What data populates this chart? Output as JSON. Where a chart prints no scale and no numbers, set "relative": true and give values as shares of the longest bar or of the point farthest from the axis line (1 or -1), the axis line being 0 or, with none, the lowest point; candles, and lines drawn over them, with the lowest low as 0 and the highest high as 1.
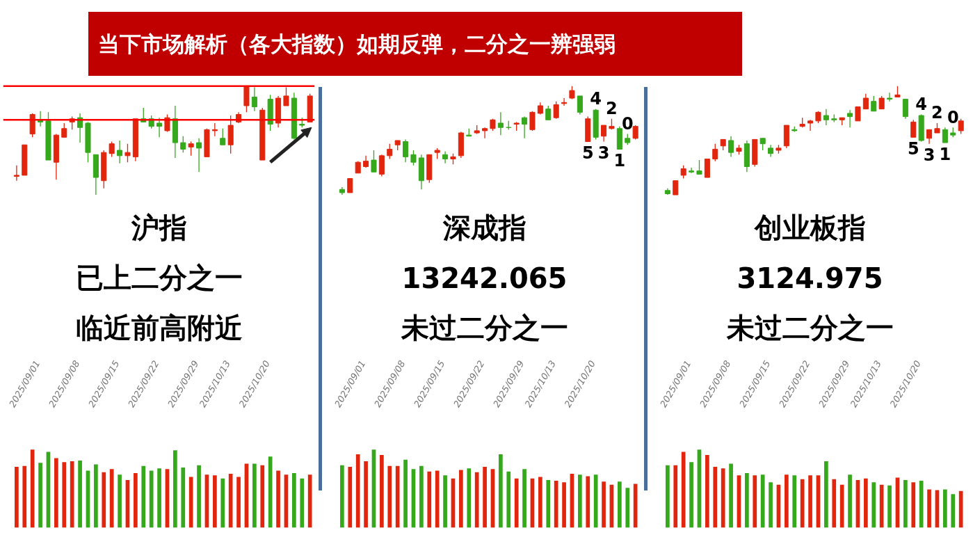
{
  "chart_data": [
    {
      "type": "candlestick",
      "title": "当下市场解析（各大指数）如期反弹，二分之一辨强弱",
      "relative": true,
      "categories": [
        null,
        "2025/09/01",
        null,
        null,
        null,
        null,
        "2025/09/08",
        null,
        null,
        null,
        null,
        "2025/09/15",
        null,
        null,
        null,
        null,
        "2025/09/22",
        null,
        null,
        null,
        null,
        "2025/09/29",
        null,
        null,
        null,
        "2025/10/13",
        null,
        null,
        null,
        null,
        "2025/10/20",
        null,
        null,
        null,
        null,
        null,
        null,
        null
      ],
      "ohlc": [
        [
          0.17,
          0.27,
          0.13,
          0.18
        ],
        [
          0.18,
          0.46,
          0.18,
          0.46
        ],
        [
          0.56,
          0.75,
          0.53,
          0.74
        ],
        [
          0.69,
          0.77,
          0.63,
          0.67
        ],
        [
          0.68,
          0.76,
          0.32,
          0.32
        ],
        [
          0.3,
          0.56,
          0.14,
          0.55
        ],
        [
          0.53,
          0.66,
          0.53,
          0.61
        ],
        [
          0.67,
          0.72,
          0.6,
          0.7
        ],
        [
          0.71,
          0.75,
          0.48,
          0.62
        ],
        [
          0.66,
          0.67,
          0.3,
          0.39
        ],
        [
          0.37,
          0.37,
          0,
          0.16
        ],
        [
          0.13,
          0.41,
          0.06,
          0.39
        ],
        [
          0.38,
          0.49,
          0.35,
          0.47
        ],
        [
          0.41,
          0.5,
          0.29,
          0.36
        ],
        [
          0.36,
          0.47,
          0.3,
          0.39
        ],
        [
          0.35,
          0.7,
          0.31,
          0.7
        ],
        [
          0.7,
          0.8,
          0.67,
          0.67
        ],
        [
          0.7,
          0.73,
          0.61,
          0.63
        ],
        [
          0.66,
          0.71,
          0.53,
          0.63
        ],
        [
          0.59,
          0.74,
          0.58,
          0.71
        ],
        [
          0.7,
          0.82,
          0.34,
          0.48
        ],
        [
          0.48,
          0.54,
          0.39,
          0.42
        ],
        [
          0.44,
          0.49,
          0.36,
          0.47
        ],
        [
          0.48,
          0.52,
          0.21,
          0.43
        ],
        [
          0.35,
          0.61,
          0.35,
          0.6
        ],
        [
          0.59,
          0.66,
          0.54,
          0.6
        ],
        [
          0.52,
          0.61,
          0.46,
          0.46
        ],
        [
          0.46,
          0.73,
          0.38,
          0.64
        ],
        [
          0.67,
          0.76,
          0.66,
          0.74
        ],
        [
          0.82,
          1,
          0.76,
          1
        ],
        [
          0.9,
          0.99,
          0.77,
          0.81
        ],
        [
          0.32,
          0.8,
          0.32,
          0.78
        ],
        [
          0.88,
          0.92,
          0.59,
          0.65
        ],
        [
          0.66,
          0.91,
          0.62,
          0.89
        ],
        [
          0.82,
          0.99,
          0.82,
          0.91
        ],
        [
          0.89,
          0.94,
          0.51,
          0.52
        ],
        [
          0.65,
          0.71,
          0.62,
          0.64
        ],
        [
          0.67,
          0.93,
          0.67,
          0.91
        ]
      ],
      "colors": [
        "#e2260e",
        "#e2260e",
        "#e2260e",
        "#35a81c",
        "#35a81c",
        "#e2260e",
        "#e2260e",
        "#e2260e",
        "#35a81c",
        "#35a81c",
        "#35a81c",
        "#e2260e",
        "#e2260e",
        "#35a81c",
        "#e2260e",
        "#e2260e",
        "#35a81c",
        "#35a81c",
        "#35a81c",
        "#e2260e",
        "#35a81c",
        "#35a81c",
        "#e2260e",
        "#35a81c",
        "#e2260e",
        "#e2260e",
        "#35a81c",
        "#e2260e",
        "#e2260e",
        "#e2260e",
        "#35a81c",
        "#e2260e",
        "#35a81c",
        "#e2260e",
        "#e2260e",
        "#35a81c",
        "#35a81c",
        "#e2260e"
      ],
      "ref_lines": [
        {
          "axis": "y",
          "value": 1,
          "color": "#ff0000"
        },
        {
          "axis": "y",
          "value": 0.69,
          "color": "#ff0000"
        }
      ],
      "annotations": [
        "沪指",
        "已上二分之一",
        "临近前高附近"
      ]
    },
    {
      "type": "bar",
      "relative": true,
      "categories": [
        null,
        null,
        null,
        null,
        null,
        null,
        null,
        null,
        null,
        null,
        null,
        null,
        null,
        null,
        null,
        null,
        null,
        null,
        null,
        null,
        null,
        null,
        null,
        null,
        null,
        null,
        null,
        null,
        null,
        null,
        null,
        null,
        null,
        null,
        null,
        null,
        null,
        null
      ],
      "values": [
        0.78,
        0.79,
        1,
        0.83,
        0.97,
        0.89,
        0.84,
        0.85,
        0.86,
        0.73,
        0.81,
        0.71,
        0.75,
        0.68,
        0.61,
        0.7,
        0.79,
        0.73,
        0.76,
        0.75,
        0.99,
        0.77,
        0.65,
        0.8,
        0.68,
        0.67,
        0.63,
        0.69,
        0.65,
        0.82,
        0.82,
        0.8,
        0.91,
        0.73,
        0.68,
        0.7,
        0.63,
        0.68
      ],
      "colors": [
        "#e2260e",
        "#e2260e",
        "#e2260e",
        "#35a81c",
        "#35a81c",
        "#e2260e",
        "#e2260e",
        "#e2260e",
        "#35a81c",
        "#35a81c",
        "#35a81c",
        "#e2260e",
        "#e2260e",
        "#35a81c",
        "#e2260e",
        "#e2260e",
        "#35a81c",
        "#35a81c",
        "#35a81c",
        "#e2260e",
        "#35a81c",
        "#35a81c",
        "#e2260e",
        "#35a81c",
        "#e2260e",
        "#e2260e",
        "#35a81c",
        "#e2260e",
        "#e2260e",
        "#e2260e",
        "#35a81c",
        "#e2260e",
        "#35a81c",
        "#e2260e",
        "#e2260e",
        "#35a81c",
        "#35a81c",
        "#e2260e"
      ]
    },
    {
      "type": "candlestick",
      "relative": true,
      "categories": [
        null,
        "2025/09/01",
        null,
        null,
        null,
        null,
        "2025/09/08",
        null,
        null,
        null,
        null,
        "2025/09/15",
        null,
        null,
        null,
        null,
        "2025/09/22",
        null,
        null,
        null,
        null,
        "2025/09/29",
        null,
        null,
        null,
        "2025/10/13",
        null,
        null,
        null,
        null,
        "2025/10/20",
        null,
        null,
        null,
        null,
        null,
        null,
        null
      ],
      "ohlc": [
        [
          0.05,
          0.07,
          0,
          0.02
        ],
        [
          0.02,
          0.15,
          0.02,
          0.15
        ],
        [
          0.2,
          0.31,
          0.2,
          0.3
        ],
        [
          0.26,
          0.36,
          0.25,
          0.31
        ],
        [
          0.32,
          0.41,
          0.21,
          0.21
        ],
        [
          0.19,
          0.37,
          0.17,
          0.36
        ],
        [
          0.36,
          0.47,
          0.33,
          0.42
        ],
        [
          0.46,
          0.5,
          0.41,
          0.5
        ],
        [
          0.49,
          0.51,
          0.3,
          0.35
        ],
        [
          0.37,
          0.41,
          0.27,
          0.3
        ],
        [
          0.34,
          0.37,
          0.05,
          0.13
        ],
        [
          0.14,
          0.37,
          0.11,
          0.37
        ],
        [
          0.39,
          0.43,
          0.33,
          0.41
        ],
        [
          0.37,
          0.4,
          0.29,
          0.33
        ],
        [
          0.33,
          0.38,
          0.28,
          0.35
        ],
        [
          0.36,
          0.58,
          0.34,
          0.57
        ],
        [
          0.55,
          0.61,
          0.54,
          0.54
        ],
        [
          0.57,
          0.64,
          0.56,
          0.59
        ],
        [
          0.59,
          0.62,
          0.52,
          0.61
        ],
        [
          0.61,
          0.7,
          0.59,
          0.69
        ],
        [
          0.66,
          0.76,
          0.55,
          0.62
        ],
        [
          0.62,
          0.68,
          0.6,
          0.62
        ],
        [
          0.65,
          0.67,
          0.59,
          0.66
        ],
        [
          0.71,
          0.72,
          0.52,
          0.65
        ],
        [
          0.6,
          0.77,
          0.59,
          0.76
        ],
        [
          0.75,
          0.85,
          0.74,
          0.82
        ],
        [
          0.79,
          0.82,
          0.69,
          0.69
        ],
        [
          0.71,
          0.86,
          0.7,
          0.83
        ],
        [
          0.84,
          0.89,
          0.82,
          0.85
        ],
        [
          0.89,
          1,
          0.88,
          0.96
        ],
        [
          0.91,
          0.91,
          0.74,
          0.76
        ],
        [
          0.49,
          0.72,
          0.49,
          0.7
        ],
        [
          0.78,
          0.79,
          0.51,
          0.53
        ],
        [
          0.54,
          0.64,
          0.49,
          0.64
        ],
        [
          0.61,
          0.7,
          0.6,
          0.63
        ],
        [
          0.61,
          0.63,
          0.42,
          0.42
        ],
        [
          0.52,
          0.56,
          0.46,
          0.48
        ],
        [
          0.52,
          0.64,
          0.51,
          0.63
        ]
      ],
      "colors": [
        "#35a81c",
        "#e2260e",
        "#e2260e",
        "#e2260e",
        "#35a81c",
        "#e2260e",
        "#e2260e",
        "#e2260e",
        "#35a81c",
        "#35a81c",
        "#35a81c",
        "#e2260e",
        "#e2260e",
        "#35a81c",
        "#e2260e",
        "#e2260e",
        "#35a81c",
        "#e2260e",
        "#e2260e",
        "#e2260e",
        "#35a81c",
        "#35a81c",
        "#e2260e",
        "#35a81c",
        "#e2260e",
        "#e2260e",
        "#35a81c",
        "#e2260e",
        "#e2260e",
        "#e2260e",
        "#35a81c",
        "#e2260e",
        "#35a81c",
        "#e2260e",
        "#e2260e",
        "#35a81c",
        "#35a81c",
        "#e2260e"
      ],
      "value_labels": [
        null,
        null,
        null,
        null,
        null,
        null,
        null,
        null,
        null,
        null,
        null,
        null,
        null,
        null,
        null,
        null,
        null,
        null,
        null,
        null,
        null,
        null,
        null,
        null,
        null,
        null,
        null,
        null,
        null,
        null,
        null,
        "5",
        "4",
        "3",
        "2",
        "1",
        "0",
        null
      ],
      "annotations": [
        "深成指",
        "13242.065",
        "未过二分之一"
      ]
    },
    {
      "type": "bar",
      "relative": true,
      "categories": [
        null,
        null,
        null,
        null,
        null,
        null,
        null,
        null,
        null,
        null,
        null,
        null,
        null,
        null,
        null,
        null,
        null,
        null,
        null,
        null,
        null,
        null,
        null,
        null,
        null,
        null,
        null,
        null,
        null,
        null,
        null,
        null,
        null,
        null,
        null,
        null,
        null,
        null
      ],
      "values": [
        0.8,
        0.78,
        0.94,
        0.85,
        1,
        0.93,
        0.79,
        0.79,
        0.87,
        0.75,
        0.79,
        0.72,
        0.73,
        0.67,
        0.63,
        0.74,
        0.76,
        0.71,
        0.78,
        0.75,
        0.94,
        0.72,
        0.63,
        0.75,
        0.63,
        0.65,
        0.61,
        0.6,
        0.58,
        0.69,
        0.68,
        0.66,
        0.68,
        0.59,
        0.55,
        0.59,
        0.51,
        0.56
      ],
      "colors": [
        "#35a81c",
        "#e2260e",
        "#e2260e",
        "#e2260e",
        "#35a81c",
        "#e2260e",
        "#e2260e",
        "#e2260e",
        "#35a81c",
        "#35a81c",
        "#35a81c",
        "#e2260e",
        "#e2260e",
        "#35a81c",
        "#e2260e",
        "#e2260e",
        "#35a81c",
        "#e2260e",
        "#e2260e",
        "#e2260e",
        "#35a81c",
        "#35a81c",
        "#e2260e",
        "#35a81c",
        "#e2260e",
        "#e2260e",
        "#35a81c",
        "#e2260e",
        "#e2260e",
        "#e2260e",
        "#35a81c",
        "#e2260e",
        "#35a81c",
        "#e2260e",
        "#e2260e",
        "#35a81c",
        "#35a81c",
        "#e2260e"
      ]
    },
    {
      "type": "candlestick",
      "relative": true,
      "categories": [
        null,
        "2025/09/01",
        null,
        null,
        null,
        null,
        "2025/09/08",
        null,
        null,
        null,
        null,
        "2025/09/15",
        null,
        null,
        null,
        null,
        "2025/09/22",
        null,
        null,
        null,
        null,
        "2025/09/29",
        null,
        null,
        null,
        "2025/10/13",
        null,
        null,
        null,
        null,
        "2025/10/20",
        null,
        null,
        null,
        null,
        null,
        null,
        null
      ],
      "ohlc": [
        [
          0.04,
          0.06,
          0,
          0.01
        ],
        [
          0,
          0.13,
          0,
          0.13
        ],
        [
          0.18,
          0.27,
          0.15,
          0.24
        ],
        [
          0.22,
          0.25,
          0.2,
          0.21
        ],
        [
          0.22,
          0.32,
          0.19,
          0.19
        ],
        [
          0.16,
          0.33,
          0.16,
          0.33
        ],
        [
          0.33,
          0.47,
          0.31,
          0.42
        ],
        [
          0.45,
          0.51,
          0.41,
          0.51
        ],
        [
          0.5,
          0.54,
          0.35,
          0.39
        ],
        [
          0.4,
          0.46,
          0.37,
          0.43
        ],
        [
          0.47,
          0.5,
          0.21,
          0.26
        ],
        [
          0.28,
          0.51,
          0.26,
          0.51
        ],
        [
          0.52,
          0.52,
          0.41,
          0.47
        ],
        [
          0.43,
          0.46,
          0.35,
          0.38
        ],
        [
          0.41,
          0.46,
          0.38,
          0.43
        ],
        [
          0.45,
          0.64,
          0.43,
          0.64
        ],
        [
          0.6,
          0.63,
          0.58,
          0.59
        ],
        [
          0.63,
          0.71,
          0.62,
          0.65
        ],
        [
          0.66,
          0.69,
          0.59,
          0.68
        ],
        [
          0.68,
          0.77,
          0.66,
          0.76
        ],
        [
          0.73,
          0.79,
          0.64,
          0.69
        ],
        [
          0.7,
          0.74,
          0.67,
          0.69
        ],
        [
          0.69,
          0.71,
          0.64,
          0.71
        ],
        [
          0.75,
          0.78,
          0.62,
          0.72
        ],
        [
          0.68,
          0.81,
          0.68,
          0.81
        ],
        [
          0.79,
          0.93,
          0.79,
          0.89
        ],
        [
          0.86,
          0.91,
          0.77,
          0.77
        ],
        [
          0.79,
          0.91,
          0.79,
          0.89
        ],
        [
          0.89,
          0.94,
          0.86,
          0.88
        ],
        [
          0.9,
          1,
          0.9,
          0.92
        ],
        [
          0.88,
          0.88,
          0.7,
          0.72
        ],
        [
          0.53,
          0.69,
          0.53,
          0.67
        ],
        [
          0.73,
          0.74,
          0.49,
          0.5
        ],
        [
          0.52,
          0.6,
          0.47,
          0.6
        ],
        [
          0.57,
          0.66,
          0.57,
          0.61
        ],
        [
          0.6,
          0.62,
          0.48,
          0.48
        ],
        [
          0.57,
          0.62,
          0.53,
          0.55
        ],
        [
          0.59,
          0.7,
          0.56,
          0.68
        ]
      ],
      "colors": [
        "#35a81c",
        "#e2260e",
        "#e2260e",
        "#35a81c",
        "#35a81c",
        "#e2260e",
        "#e2260e",
        "#e2260e",
        "#35a81c",
        "#e2260e",
        "#35a81c",
        "#e2260e",
        "#35a81c",
        "#35a81c",
        "#e2260e",
        "#e2260e",
        "#35a81c",
        "#e2260e",
        "#e2260e",
        "#e2260e",
        "#35a81c",
        "#35a81c",
        "#e2260e",
        "#35a81c",
        "#e2260e",
        "#e2260e",
        "#35a81c",
        "#e2260e",
        "#35a81c",
        "#e2260e",
        "#35a81c",
        "#e2260e",
        "#35a81c",
        "#e2260e",
        "#e2260e",
        "#35a81c",
        "#35a81c",
        "#e2260e"
      ],
      "value_labels": [
        null,
        null,
        null,
        null,
        null,
        null,
        null,
        null,
        null,
        null,
        null,
        null,
        null,
        null,
        null,
        null,
        null,
        null,
        null,
        null,
        null,
        null,
        null,
        null,
        null,
        null,
        null,
        null,
        null,
        null,
        null,
        "5",
        "4",
        "3",
        "2",
        "1",
        "0",
        null
      ],
      "annotations": [
        "创业板指",
        "3124.975",
        "未过二分之一"
      ]
    },
    {
      "type": "bar",
      "relative": true,
      "categories": [
        null,
        null,
        null,
        null,
        null,
        null,
        null,
        null,
        null,
        null,
        null,
        null,
        null,
        null,
        null,
        null,
        null,
        null,
        null,
        null,
        null,
        null,
        null,
        null,
        null,
        null,
        null,
        null,
        null,
        null,
        null,
        null,
        null,
        null,
        null,
        null,
        null,
        null
      ],
      "values": [
        0.8,
        0.8,
        0.97,
        0.84,
        1,
        0.93,
        0.78,
        0.76,
        0.82,
        0.67,
        0.7,
        0.67,
        0.68,
        0.58,
        0.55,
        0.68,
        0.67,
        0.62,
        0.67,
        0.67,
        0.85,
        0.62,
        0.55,
        0.68,
        0.61,
        0.63,
        0.58,
        0.55,
        0.54,
        0.64,
        0.61,
        0.58,
        0.6,
        0.49,
        0.48,
        0.49,
        0.43,
        0.47
      ],
      "colors": [
        "#35a81c",
        "#e2260e",
        "#e2260e",
        "#35a81c",
        "#35a81c",
        "#e2260e",
        "#e2260e",
        "#e2260e",
        "#35a81c",
        "#e2260e",
        "#35a81c",
        "#e2260e",
        "#35a81c",
        "#35a81c",
        "#e2260e",
        "#e2260e",
        "#35a81c",
        "#e2260e",
        "#e2260e",
        "#e2260e",
        "#35a81c",
        "#e2260e",
        "#e2260e",
        "#35a81c",
        "#e2260e",
        "#e2260e",
        "#35a81c",
        "#e2260e",
        "#35a81c",
        "#e2260e",
        "#35a81c",
        "#e2260e",
        "#35a81c",
        "#e2260e",
        "#e2260e",
        "#35a81c",
        "#35a81c",
        "#e2260e"
      ]
    }
  ]
}
